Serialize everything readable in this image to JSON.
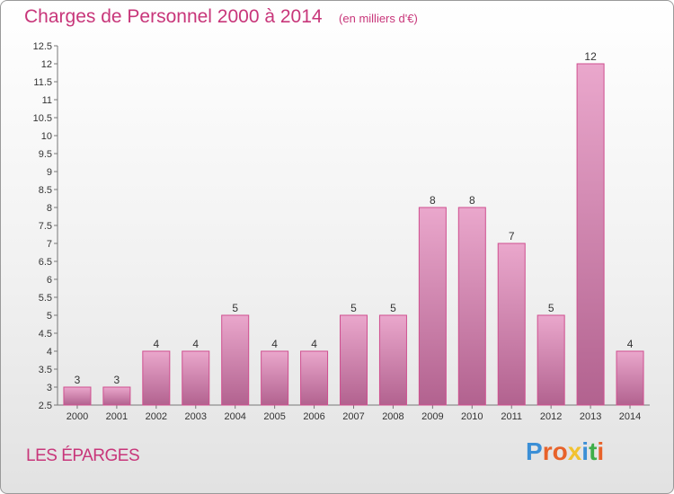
{
  "header": {
    "title": "Charges de Personnel 2000 à 2014",
    "subtitle": "(en milliers d'€)"
  },
  "commune": "LES ÉPARGES",
  "logo": {
    "text": "Proxiti",
    "letter_colors": [
      "#3b8fd6",
      "#e8622a",
      "#e8622a",
      "#f2c230",
      "#3b8fd6",
      "#3fae49",
      "#e8622a"
    ]
  },
  "colors": {
    "accent": "#c8367a",
    "bar_top": "#eaa7cc",
    "bar_bottom": "#b2628f"
  },
  "chart_data": {
    "type": "bar",
    "categories": [
      "2000",
      "2001",
      "2002",
      "2003",
      "2004",
      "2005",
      "2006",
      "2007",
      "2008",
      "2009",
      "2010",
      "2011",
      "2012",
      "2013",
      "2014"
    ],
    "values": [
      3,
      3,
      4,
      4,
      5,
      4,
      4,
      5,
      5,
      8,
      8,
      7,
      5,
      12,
      4
    ],
    "title": "Charges de Personnel 2000 à 2014",
    "subtitle": "(en milliers d'€)",
    "ylim": [
      2.5,
      12.5
    ],
    "yticks": [
      2.5,
      3,
      3.5,
      4,
      4.5,
      5,
      5.5,
      6,
      6.5,
      7,
      7.5,
      8,
      8.5,
      9,
      9.5,
      10,
      10.5,
      11,
      11.5,
      12,
      12.5
    ],
    "grid": false,
    "legend": "none"
  }
}
